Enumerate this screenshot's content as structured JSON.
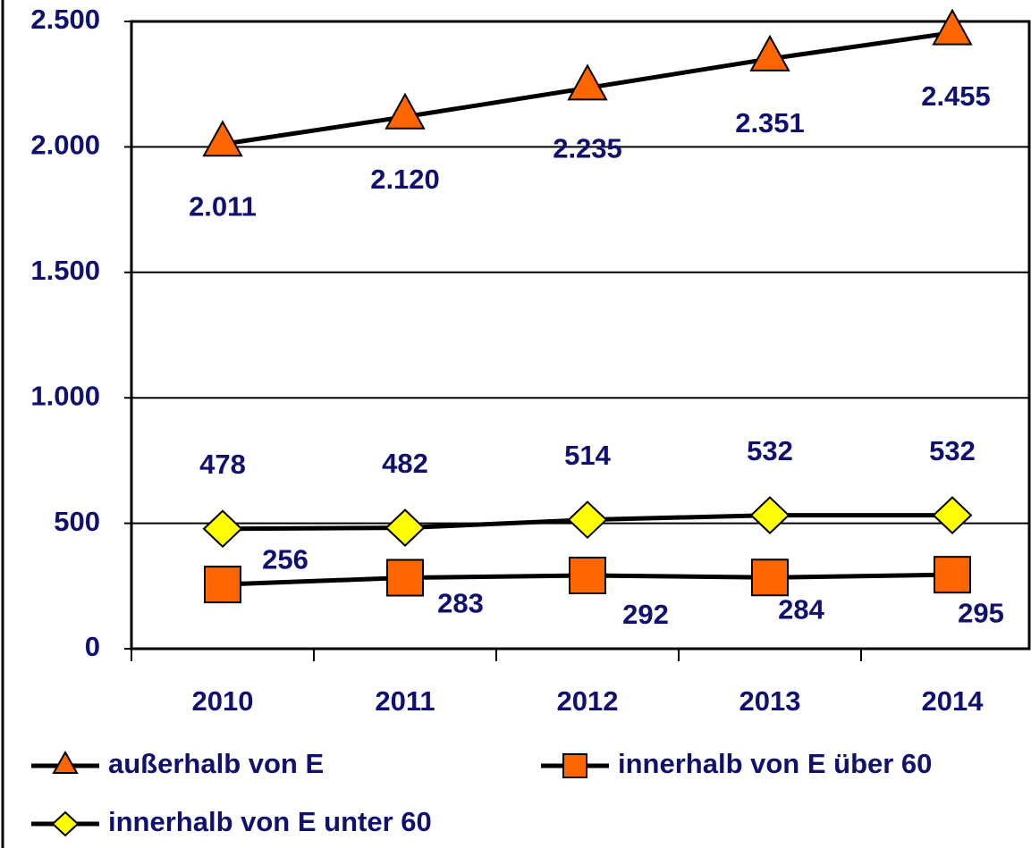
{
  "chart_data": {
    "type": "line",
    "categories": [
      "2010",
      "2011",
      "2012",
      "2013",
      "2014"
    ],
    "series": [
      {
        "name": "außerhalb von E",
        "color": "#ff6600",
        "marker": "triangle",
        "values": [
          2011,
          2120,
          2235,
          2351,
          2455
        ],
        "value_labels": [
          "2.011",
          "2.120",
          "2.235",
          "2.351",
          "2.455"
        ]
      },
      {
        "name": "innerhalb von E über 60",
        "color": "#ff6600",
        "marker": "square",
        "values": [
          256,
          283,
          292,
          284,
          295
        ]
      },
      {
        "name": "innerhalb von E unter 60",
        "color": "#ffff00",
        "marker": "diamond",
        "values": [
          478,
          482,
          514,
          532,
          532
        ]
      }
    ],
    "ylim": [
      0,
      2500
    ],
    "yticks": [
      0,
      500,
      {
        "value": 1000,
        "label": "1.000"
      },
      {
        "value": 1500,
        "label": "1.500"
      },
      {
        "value": 2000,
        "label": "2.000"
      },
      {
        "value": 2500,
        "label": "2.500"
      }
    ],
    "grid": true
  }
}
